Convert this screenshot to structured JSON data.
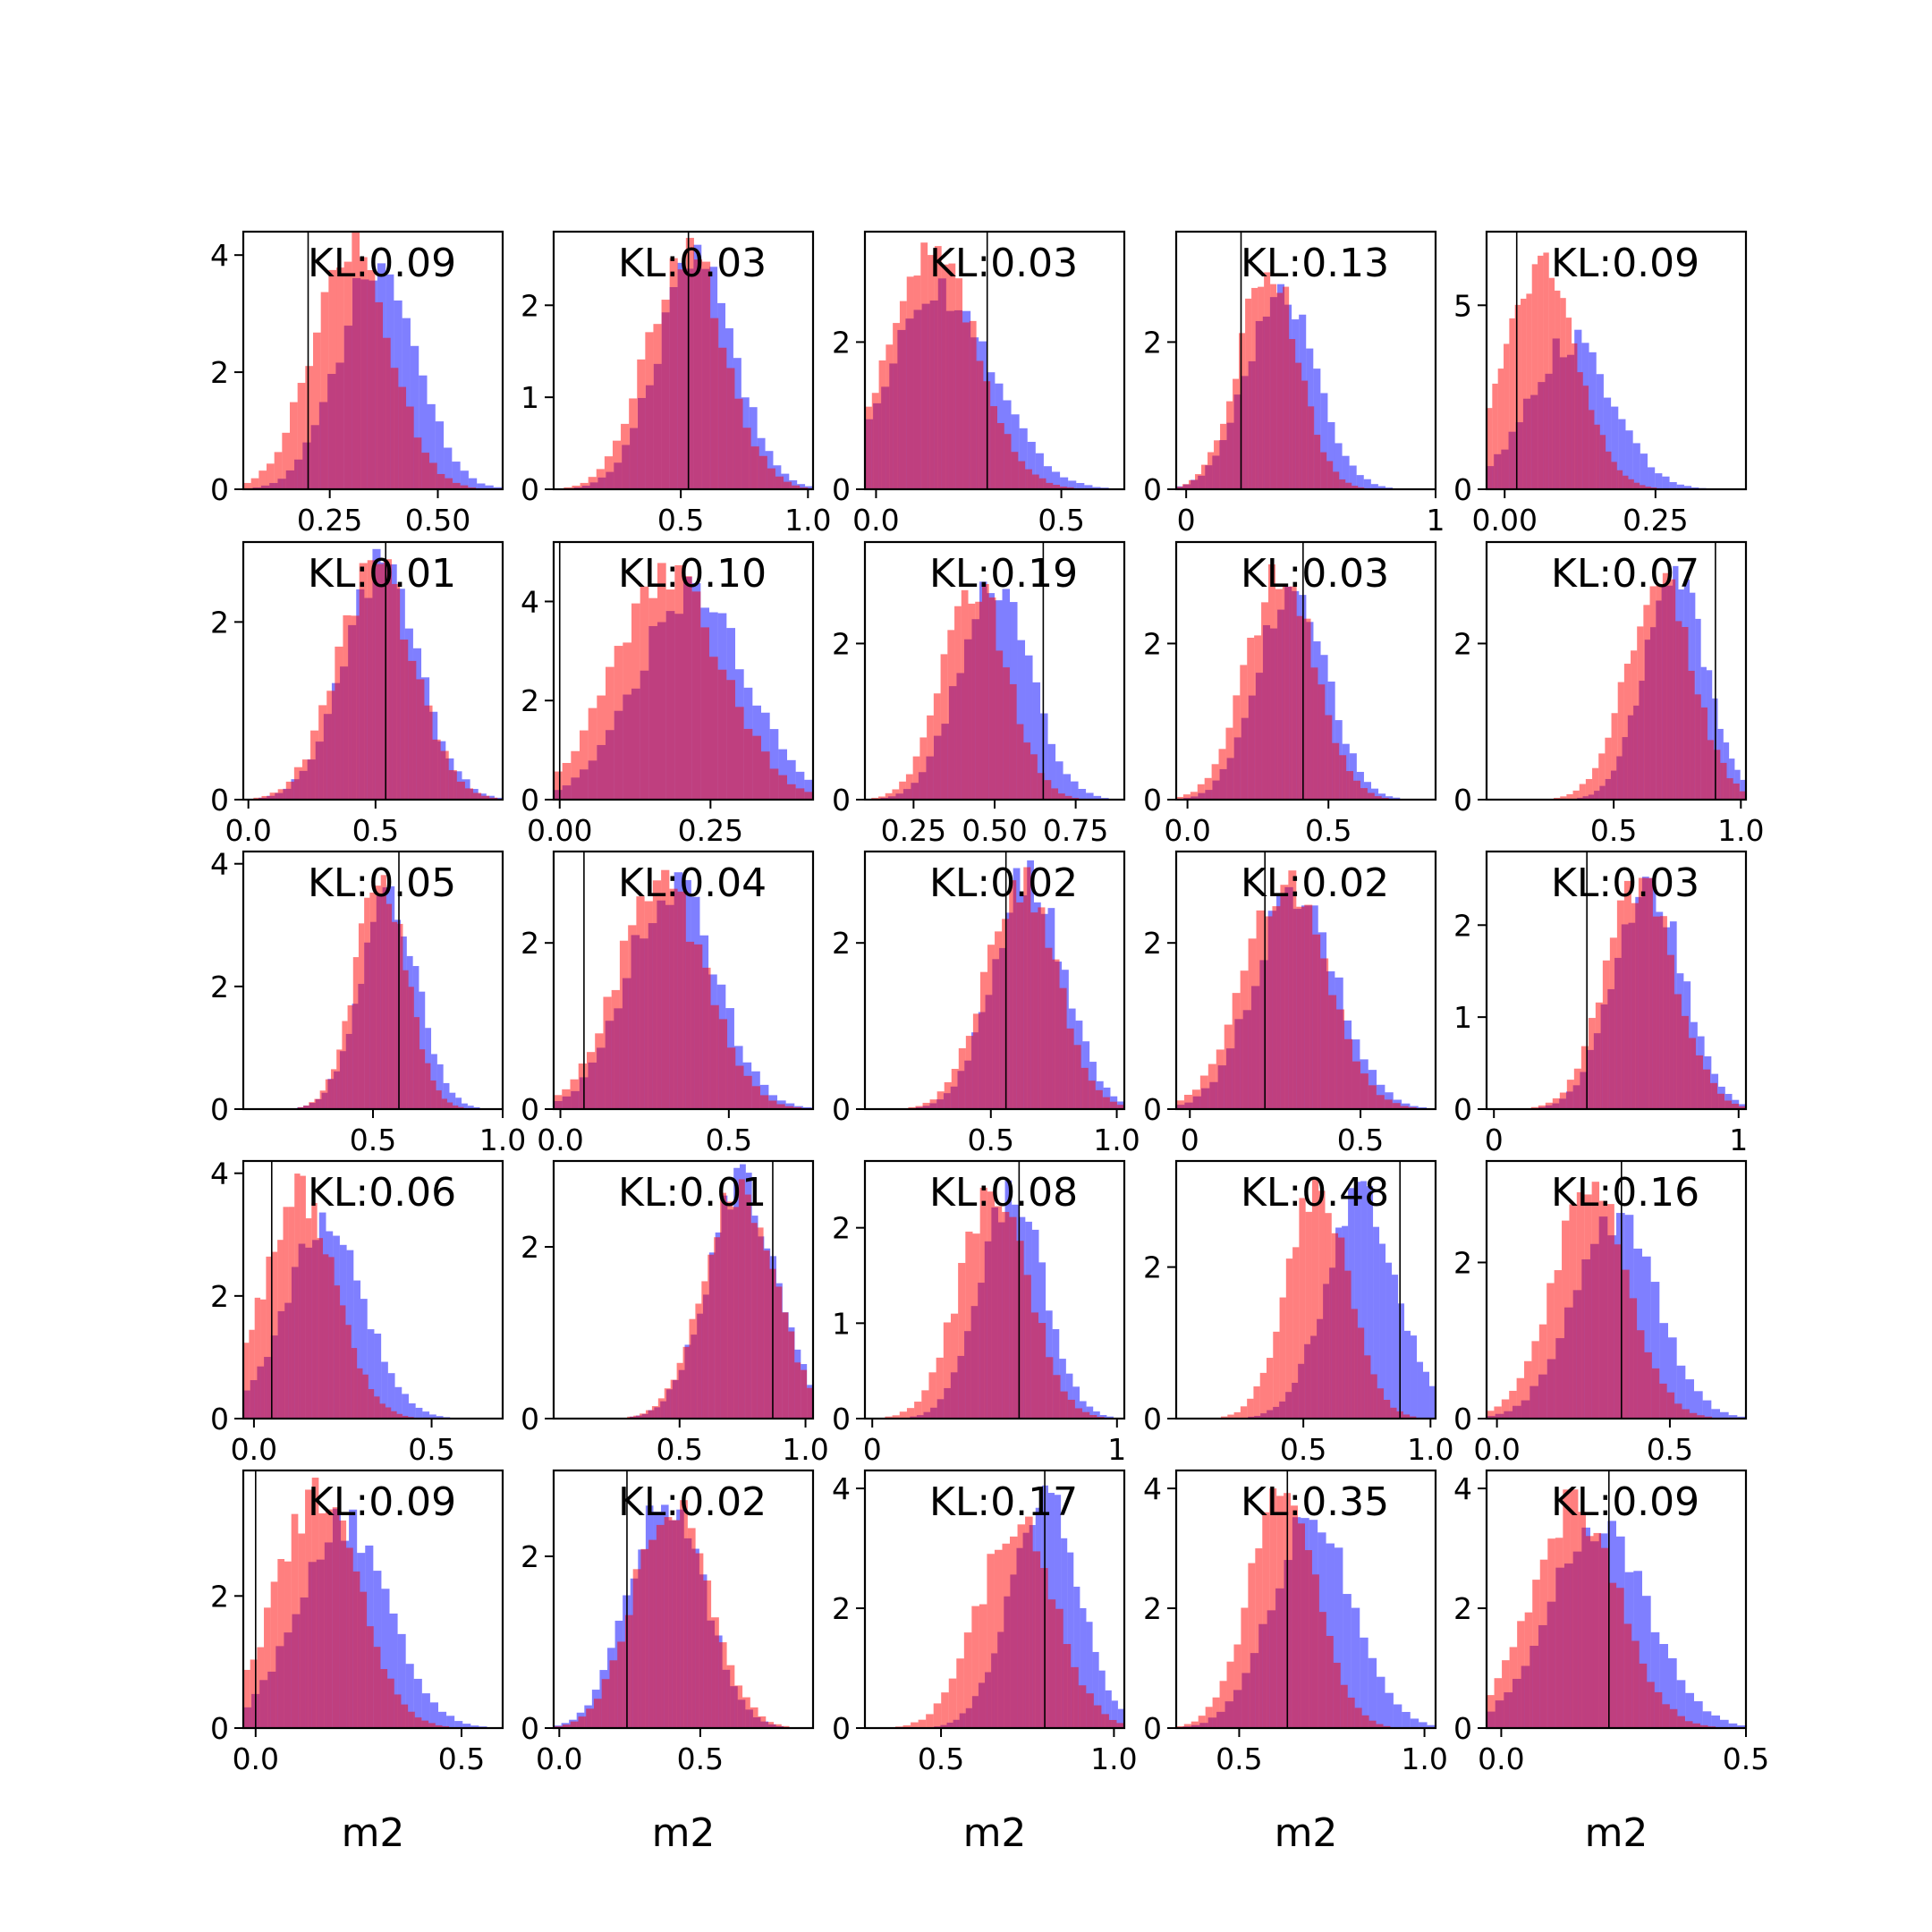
{
  "colors": {
    "red_hist": "#ff0000",
    "blue_hist": "#0000ff",
    "overlap_note": "both drawn at alpha 0.5",
    "line": "#000000"
  },
  "chart_data": [
    {
      "type": "histogram",
      "kl": "KL:0.09",
      "xlabel": "",
      "xlim": [
        0.05,
        0.65
      ],
      "ylim": [
        0,
        4.4
      ],
      "xticks": [
        0.25,
        0.5
      ],
      "xtick_labels": [
        "0.25",
        "0.50"
      ],
      "yticks": [
        0,
        2,
        4
      ],
      "ytick_labels": [
        "0",
        "2",
        "4"
      ],
      "vline": 0.2,
      "red": {
        "mean": 0.3,
        "sd": 0.09,
        "peak": 4.1
      },
      "blue": {
        "mean": 0.36,
        "sd": 0.09,
        "peak": 3.8
      }
    },
    {
      "type": "histogram",
      "kl": "KL:0.03",
      "xlabel": "",
      "xlim": [
        0.0,
        1.02
      ],
      "ylim": [
        0,
        2.8
      ],
      "xticks": [
        0.5,
        1.0
      ],
      "xtick_labels": [
        "0.5",
        "1.0"
      ],
      "yticks": [
        0,
        1,
        2
      ],
      "ytick_labels": [
        "0",
        "1",
        "2"
      ],
      "vline": 0.53,
      "red": {
        "mean": 0.52,
        "sd": 0.15,
        "peak": 2.6
      },
      "blue": {
        "mean": 0.56,
        "sd": 0.15,
        "peak": 2.5
      }
    },
    {
      "type": "histogram",
      "kl": "KL:0.03",
      "xlabel": "",
      "xlim": [
        -0.03,
        0.67
      ],
      "ylim": [
        0,
        3.5
      ],
      "xticks": [
        0.0,
        0.5
      ],
      "xtick_labels": [
        "0.0",
        "0.5"
      ],
      "yticks": [
        0,
        2
      ],
      "ytick_labels": [
        "0",
        "2"
      ],
      "vline": 0.3,
      "red": {
        "mean": 0.15,
        "sd": 0.12,
        "peak": 3.2
      },
      "blue": {
        "mean": 0.18,
        "sd": 0.14,
        "peak": 2.7
      }
    },
    {
      "type": "histogram",
      "kl": "KL:0.13",
      "xlabel": "",
      "xlim": [
        -0.04,
        1.0
      ],
      "ylim": [
        0,
        3.5
      ],
      "xticks": [
        0.0,
        1.0
      ],
      "xtick_labels": [
        "0",
        "1"
      ],
      "yticks": [
        0,
        2
      ],
      "ytick_labels": [
        "0",
        "2"
      ],
      "vline": 0.22,
      "red": {
        "mean": 0.33,
        "sd": 0.12,
        "peak": 3.0
      },
      "blue": {
        "mean": 0.38,
        "sd": 0.14,
        "peak": 2.7
      }
    },
    {
      "type": "histogram",
      "kl": "KL:0.09",
      "xlabel": "",
      "xlim": [
        -0.03,
        0.4
      ],
      "ylim": [
        0,
        7.0
      ],
      "xticks": [
        0.0,
        0.25
      ],
      "xtick_labels": [
        "0.00",
        "0.25"
      ],
      "yticks": [
        0,
        5
      ],
      "ytick_labels": [
        "0",
        "5"
      ],
      "vline": 0.02,
      "red": {
        "mean": 0.06,
        "sd": 0.06,
        "peak": 6.2
      },
      "blue": {
        "mean": 0.11,
        "sd": 0.07,
        "peak": 4.0
      }
    },
    {
      "type": "histogram",
      "kl": "KL:0.01",
      "xlabel": "",
      "xlim": [
        -0.02,
        1.0
      ],
      "ylim": [
        0,
        2.9
      ],
      "xticks": [
        0.0,
        0.5
      ],
      "xtick_labels": [
        "0.0",
        "0.5"
      ],
      "yticks": [
        0,
        2
      ],
      "ytick_labels": [
        "0",
        "2"
      ],
      "vline": 0.54,
      "red": {
        "mean": 0.5,
        "sd": 0.15,
        "peak": 2.6
      },
      "blue": {
        "mean": 0.52,
        "sd": 0.15,
        "peak": 2.6
      }
    },
    {
      "type": "histogram",
      "kl": "KL:0.10",
      "xlabel": "",
      "xlim": [
        -0.01,
        0.42
      ],
      "ylim": [
        0,
        5.2
      ],
      "xticks": [
        0.0,
        0.25
      ],
      "xtick_labels": [
        "0.00",
        "0.25"
      ],
      "yticks": [
        0,
        2,
        4
      ],
      "ytick_labels": [
        "0",
        "2",
        "4"
      ],
      "vline": 0.0,
      "red": {
        "mean": 0.18,
        "sd": 0.09,
        "peak": 4.5
      },
      "blue": {
        "mean": 0.22,
        "sd": 0.09,
        "peak": 4.2
      }
    },
    {
      "type": "histogram",
      "kl": "KL:0.19",
      "xlabel": "",
      "xlim": [
        0.1,
        0.9
      ],
      "ylim": [
        0,
        3.3
      ],
      "xticks": [
        0.25,
        0.5,
        0.75
      ],
      "xtick_labels": [
        "0.25",
        "0.50",
        "0.75"
      ],
      "yticks": [
        0,
        2
      ],
      "ytick_labels": [
        "0",
        "2"
      ],
      "vline": 0.65,
      "red": {
        "mean": 0.44,
        "sd": 0.1,
        "peak": 2.8
      },
      "blue": {
        "mean": 0.5,
        "sd": 0.11,
        "peak": 2.8
      }
    },
    {
      "type": "histogram",
      "kl": "KL:0.03",
      "xlabel": "",
      "xlim": [
        -0.04,
        0.88
      ],
      "ylim": [
        0,
        3.3
      ],
      "xticks": [
        0.0,
        0.5
      ],
      "xtick_labels": [
        "0.0",
        "0.5"
      ],
      "yticks": [
        0,
        2
      ],
      "ytick_labels": [
        "0",
        "2"
      ],
      "vline": 0.41,
      "red": {
        "mean": 0.33,
        "sd": 0.12,
        "peak": 2.9
      },
      "blue": {
        "mean": 0.37,
        "sd": 0.12,
        "peak": 2.8
      }
    },
    {
      "type": "histogram",
      "kl": "KL:0.07",
      "xlabel": "",
      "xlim": [
        0.0,
        1.02
      ],
      "ylim": [
        0,
        3.3
      ],
      "xticks": [
        0.5,
        1.0
      ],
      "xtick_labels": [
        "0.5",
        "1.0"
      ],
      "yticks": [
        0,
        2
      ],
      "ytick_labels": [
        "0",
        "2"
      ],
      "vline": 0.9,
      "red": {
        "mean": 0.68,
        "sd": 0.13,
        "peak": 2.8
      },
      "blue": {
        "mean": 0.74,
        "sd": 0.12,
        "peak": 2.9
      }
    },
    {
      "type": "histogram",
      "kl": "KL:0.05",
      "xlabel": "",
      "xlim": [
        0.0,
        1.0
      ],
      "ylim": [
        0,
        4.2
      ],
      "xticks": [
        0.5,
        1.0
      ],
      "xtick_labels": [
        "0.5",
        "1.0"
      ],
      "yticks": [
        0,
        2,
        4
      ],
      "ytick_labels": [
        "0",
        "2",
        "4"
      ],
      "vline": 0.6,
      "red": {
        "mean": 0.53,
        "sd": 0.1,
        "peak": 3.7
      },
      "blue": {
        "mean": 0.56,
        "sd": 0.11,
        "peak": 3.5
      }
    },
    {
      "type": "histogram",
      "kl": "KL:0.04",
      "xlabel": "",
      "xlim": [
        -0.02,
        0.75
      ],
      "ylim": [
        0,
        3.1
      ],
      "xticks": [
        0.0,
        0.5
      ],
      "xtick_labels": [
        "0.0",
        "0.5"
      ],
      "yticks": [
        0,
        2
      ],
      "ytick_labels": [
        "0",
        "2"
      ],
      "vline": 0.07,
      "red": {
        "mean": 0.3,
        "sd": 0.13,
        "peak": 2.7
      },
      "blue": {
        "mean": 0.33,
        "sd": 0.13,
        "peak": 2.7
      }
    },
    {
      "type": "histogram",
      "kl": "KL:0.02",
      "xlabel": "",
      "xlim": [
        0.0,
        1.03
      ],
      "ylim": [
        0,
        3.1
      ],
      "xticks": [
        0.5,
        1.0
      ],
      "xtick_labels": [
        "0.5",
        "1.0"
      ],
      "yticks": [
        0,
        2
      ],
      "ytick_labels": [
        "0",
        "2"
      ],
      "vline": 0.56,
      "red": {
        "mean": 0.62,
        "sd": 0.14,
        "peak": 2.7
      },
      "blue": {
        "mean": 0.65,
        "sd": 0.14,
        "peak": 2.8
      }
    },
    {
      "type": "histogram",
      "kl": "KL:0.02",
      "xlabel": "",
      "xlim": [
        -0.04,
        0.72
      ],
      "ylim": [
        0,
        3.1
      ],
      "xticks": [
        0.0,
        0.5
      ],
      "xtick_labels": [
        "0",
        "0.5"
      ],
      "yticks": [
        0,
        2
      ],
      "ytick_labels": [
        "0",
        "2"
      ],
      "vline": 0.22,
      "red": {
        "mean": 0.28,
        "sd": 0.12,
        "peak": 2.7
      },
      "blue": {
        "mean": 0.31,
        "sd": 0.12,
        "peak": 2.6
      }
    },
    {
      "type": "histogram",
      "kl": "KL:0.03",
      "xlabel": "",
      "xlim": [
        -0.03,
        1.03
      ],
      "ylim": [
        0,
        2.8
      ],
      "xticks": [
        0.0,
        1.0
      ],
      "xtick_labels": [
        "0",
        "1"
      ],
      "yticks": [
        0,
        1,
        2
      ],
      "ytick_labels": [
        "0",
        "1",
        "2"
      ],
      "vline": 0.38,
      "red": {
        "mean": 0.6,
        "sd": 0.14,
        "peak": 2.5
      },
      "blue": {
        "mean": 0.63,
        "sd": 0.14,
        "peak": 2.5
      }
    },
    {
      "type": "histogram",
      "kl": "KL:0.06",
      "xlabel": "",
      "xlim": [
        -0.03,
        0.7
      ],
      "ylim": [
        0,
        4.2
      ],
      "xticks": [
        0.0,
        0.5
      ],
      "xtick_labels": [
        "0.0",
        "0.5"
      ],
      "yticks": [
        0,
        2,
        4
      ],
      "ytick_labels": [
        "0",
        "2",
        "4"
      ],
      "vline": 0.05,
      "red": {
        "mean": 0.13,
        "sd": 0.1,
        "peak": 3.7
      },
      "blue": {
        "mean": 0.2,
        "sd": 0.11,
        "peak": 3.2
      }
    },
    {
      "type": "histogram",
      "kl": "KL:0.01",
      "xlabel": "",
      "xlim": [
        0.0,
        1.03
      ],
      "ylim": [
        0,
        3.0
      ],
      "xticks": [
        0.5,
        1.0
      ],
      "xtick_labels": [
        "0.5",
        "1.0"
      ],
      "yticks": [
        0,
        2
      ],
      "ytick_labels": [
        "0",
        "2"
      ],
      "vline": 0.87,
      "red": {
        "mean": 0.74,
        "sd": 0.14,
        "peak": 2.7
      },
      "blue": {
        "mean": 0.75,
        "sd": 0.14,
        "peak": 2.7
      }
    },
    {
      "type": "histogram",
      "kl": "KL:0.08",
      "xlabel": "",
      "xlim": [
        -0.03,
        1.03
      ],
      "ylim": [
        0,
        2.7
      ],
      "xticks": [
        0.0,
        1.0
      ],
      "xtick_labels": [
        "0",
        "1"
      ],
      "yticks": [
        0,
        1,
        2
      ],
      "ytick_labels": [
        "0",
        "1",
        "2"
      ],
      "vline": 0.6,
      "red": {
        "mean": 0.5,
        "sd": 0.14,
        "peak": 2.4
      },
      "blue": {
        "mean": 0.57,
        "sd": 0.13,
        "peak": 2.4
      }
    },
    {
      "type": "histogram",
      "kl": "KL:0.48",
      "xlabel": "",
      "xlim": [
        0.0,
        1.02
      ],
      "ylim": [
        0,
        3.4
      ],
      "xticks": [
        0.5,
        1.0
      ],
      "xtick_labels": [
        "0.5",
        "1.0"
      ],
      "yticks": [
        0,
        2
      ],
      "ytick_labels": [
        "0",
        "2"
      ],
      "vline": 0.88,
      "red": {
        "mean": 0.56,
        "sd": 0.12,
        "peak": 3.1
      },
      "blue": {
        "mean": 0.73,
        "sd": 0.14,
        "peak": 2.9
      }
    },
    {
      "type": "histogram",
      "kl": "KL:0.16",
      "xlabel": "",
      "xlim": [
        -0.03,
        0.72
      ],
      "ylim": [
        0,
        3.3
      ],
      "xticks": [
        0.0,
        0.5
      ],
      "xtick_labels": [
        "0.0",
        "0.5"
      ],
      "yticks": [
        0,
        2
      ],
      "ytick_labels": [
        "0",
        "2"
      ],
      "vline": 0.36,
      "red": {
        "mean": 0.27,
        "sd": 0.11,
        "peak": 2.9
      },
      "blue": {
        "mean": 0.34,
        "sd": 0.12,
        "peak": 2.6
      }
    },
    {
      "type": "histogram",
      "kl": "KL:0.09",
      "xlabel": "m2",
      "xlim": [
        -0.03,
        0.6
      ],
      "ylim": [
        0,
        3.9
      ],
      "xticks": [
        0.0,
        0.5
      ],
      "xtick_labels": [
        "0.0",
        "0.5"
      ],
      "yticks": [
        0,
        2
      ],
      "ytick_labels": [
        "0",
        "2"
      ],
      "vline": 0.0,
      "red": {
        "mean": 0.15,
        "sd": 0.1,
        "peak": 3.5
      },
      "blue": {
        "mean": 0.21,
        "sd": 0.11,
        "peak": 3.1
      }
    },
    {
      "type": "histogram",
      "kl": "KL:0.02",
      "xlabel": "m2",
      "xlim": [
        -0.02,
        0.9
      ],
      "ylim": [
        0,
        3.0
      ],
      "xticks": [
        0.0,
        0.5
      ],
      "xtick_labels": [
        "0.0",
        "0.5"
      ],
      "yticks": [
        0,
        2
      ],
      "ytick_labels": [
        "0",
        "2"
      ],
      "vline": 0.24,
      "red": {
        "mean": 0.4,
        "sd": 0.13,
        "peak": 2.7
      },
      "blue": {
        "mean": 0.38,
        "sd": 0.13,
        "peak": 2.7
      }
    },
    {
      "type": "histogram",
      "kl": "KL:0.17",
      "xlabel": "m2",
      "xlim": [
        0.28,
        1.03
      ],
      "ylim": [
        0,
        4.3
      ],
      "xticks": [
        0.5,
        1.0
      ],
      "xtick_labels": [
        "0.5",
        "1.0"
      ],
      "yticks": [
        0,
        2,
        4
      ],
      "ytick_labels": [
        "0",
        "2",
        "4"
      ],
      "vline": 0.8,
      "red": {
        "mean": 0.72,
        "sd": 0.11,
        "peak": 3.4
      },
      "blue": {
        "mean": 0.8,
        "sd": 0.1,
        "peak": 3.8
      }
    },
    {
      "type": "histogram",
      "kl": "KL:0.35",
      "xlabel": "m2",
      "xlim": [
        0.33,
        1.03
      ],
      "ylim": [
        0,
        4.3
      ],
      "xticks": [
        0.5,
        1.0
      ],
      "xtick_labels": [
        "0.5",
        "1.0"
      ],
      "yticks": [
        0,
        2,
        4
      ],
      "ytick_labels": [
        "0",
        "2",
        "4"
      ],
      "vline": 0.63,
      "red": {
        "mean": 0.62,
        "sd": 0.09,
        "peak": 4.0
      },
      "blue": {
        "mean": 0.7,
        "sd": 0.11,
        "peak": 3.5
      }
    },
    {
      "type": "histogram",
      "kl": "KL:0.09",
      "xlabel": "m2",
      "xlim": [
        -0.03,
        0.5
      ],
      "ylim": [
        0,
        4.3
      ],
      "xticks": [
        0.0,
        0.5
      ],
      "xtick_labels": [
        "0.0",
        "0.5"
      ],
      "yticks": [
        0,
        2,
        4
      ],
      "ytick_labels": [
        "0",
        "2",
        "4"
      ],
      "vline": 0.22,
      "red": {
        "mean": 0.15,
        "sd": 0.09,
        "peak": 3.7
      },
      "blue": {
        "mean": 0.2,
        "sd": 0.1,
        "peak": 3.4
      }
    }
  ]
}
